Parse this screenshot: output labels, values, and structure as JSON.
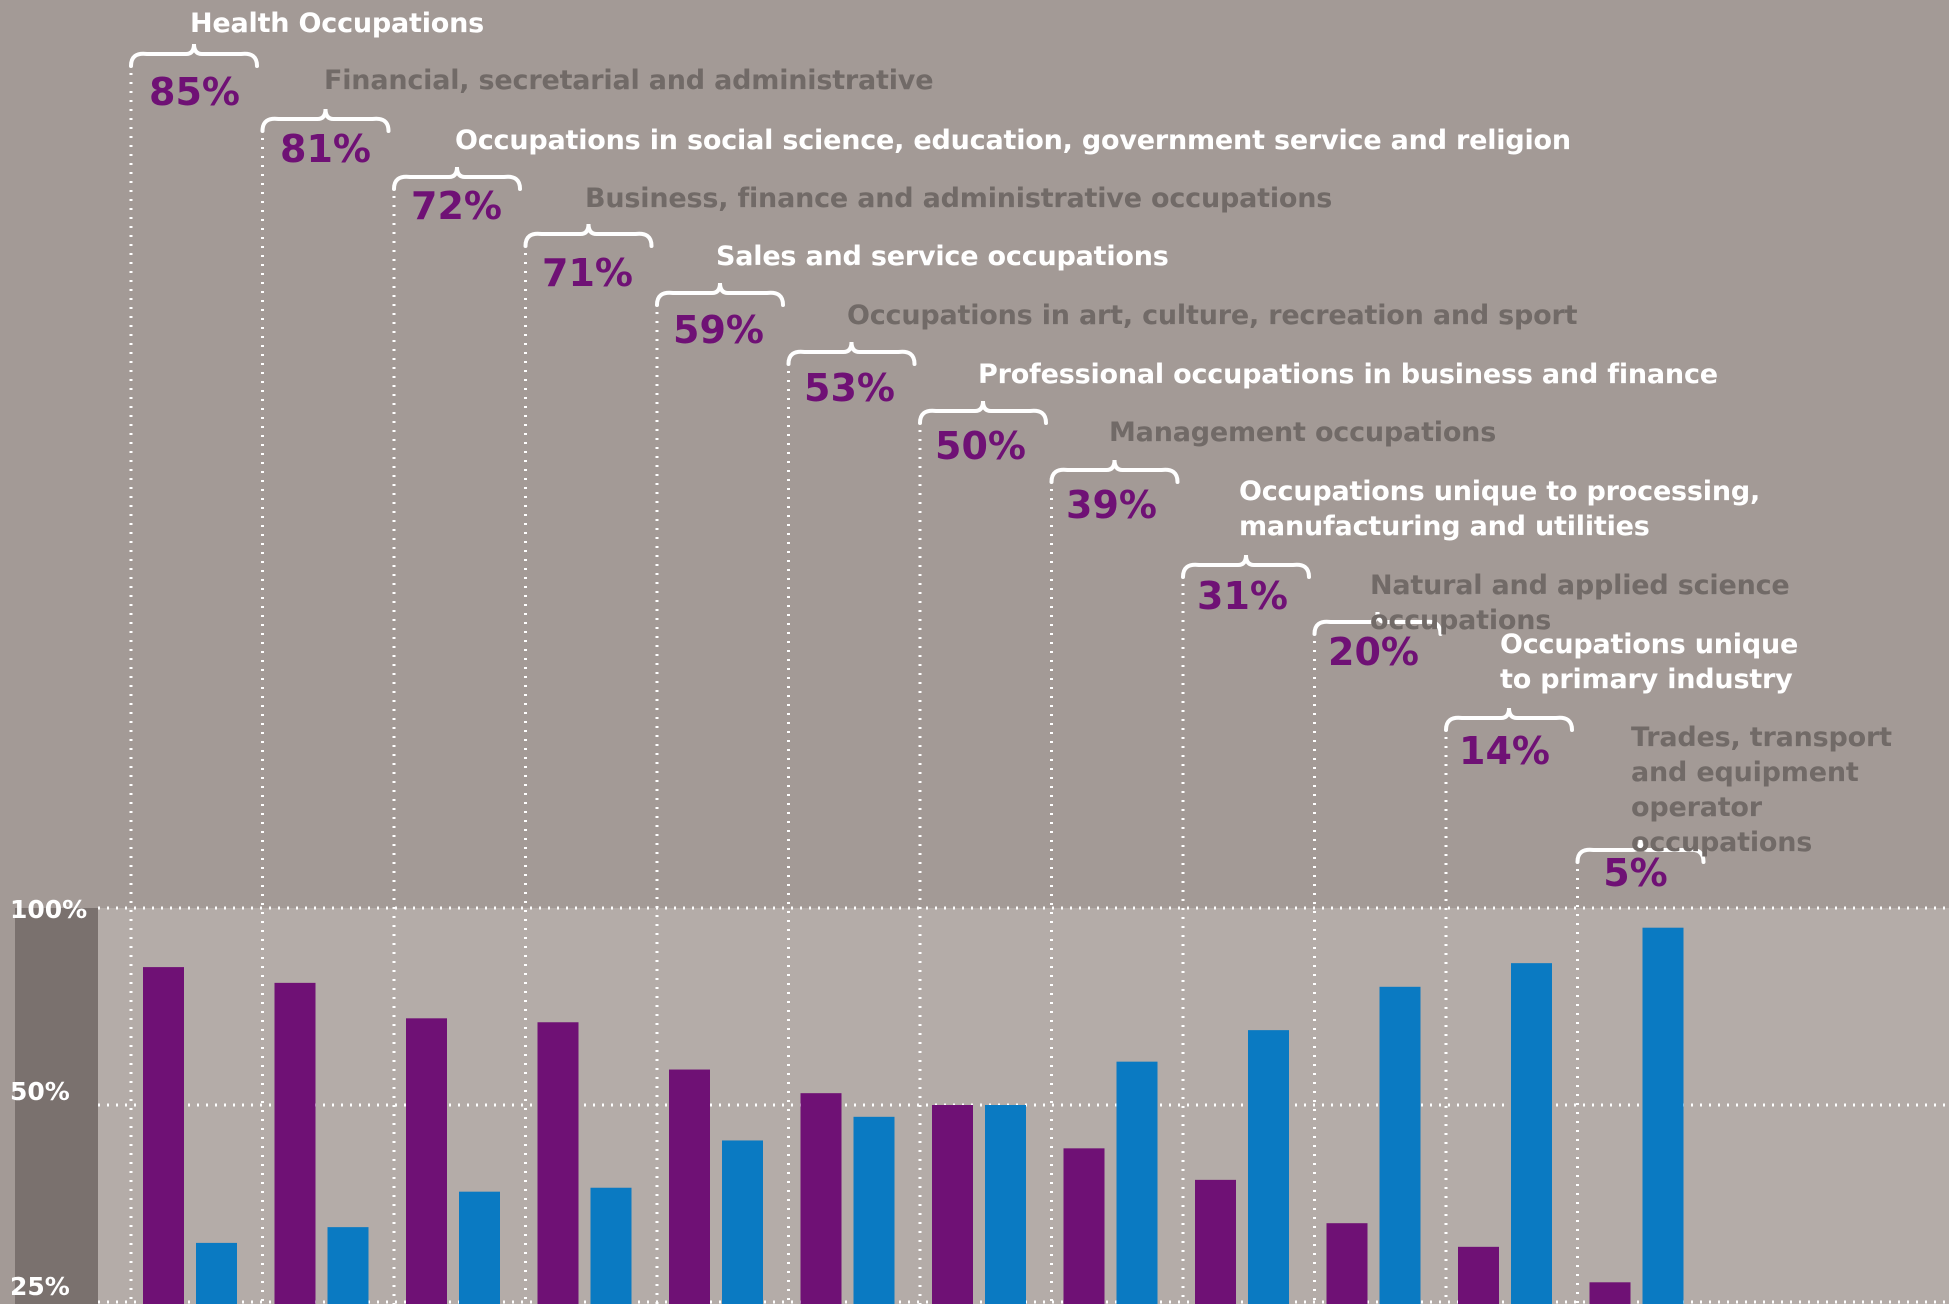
{
  "chart_data": {
    "type": "bar",
    "categories": [
      "Health Occupations",
      "Financial, secretarial and administrative",
      "Occupations in social science, education, government service and religion",
      "Business, finance and administrative occupations",
      "Sales and service occupations",
      "Occupations in art, culture, recreation and sport",
      "Professional occupations in business and finance",
      "Management occupations",
      "Occupations unique to processing,\nmanufacturing and utilities",
      "Natural and applied science occupations",
      "Occupations unique\nto primary industry",
      "Trades, transport\nand equipment\noperator occupations"
    ],
    "percent_labels": [
      "85%",
      "81%",
      "72%",
      "71%",
      "59%",
      "53%",
      "50%",
      "39%",
      "31%",
      "20%",
      "14%",
      "5%"
    ],
    "series": [
      {
        "values": [
          85,
          81,
          72,
          71,
          59,
          53,
          50,
          39,
          31,
          20,
          14,
          5
        ],
        "color": "#6f1175"
      },
      {
        "values": [
          15,
          19,
          28,
          29,
          41,
          47,
          50,
          61,
          69,
          80,
          86,
          95
        ],
        "color": "#0a7ac2"
      }
    ],
    "y_ticks": [
      "100%",
      "50%",
      "25%"
    ],
    "ylim": [
      0,
      100
    ],
    "grid": true,
    "label_colors": [
      "#ffffff",
      "#716a67"
    ],
    "background": "#a39a96",
    "plot_background": "#b4aca8"
  }
}
